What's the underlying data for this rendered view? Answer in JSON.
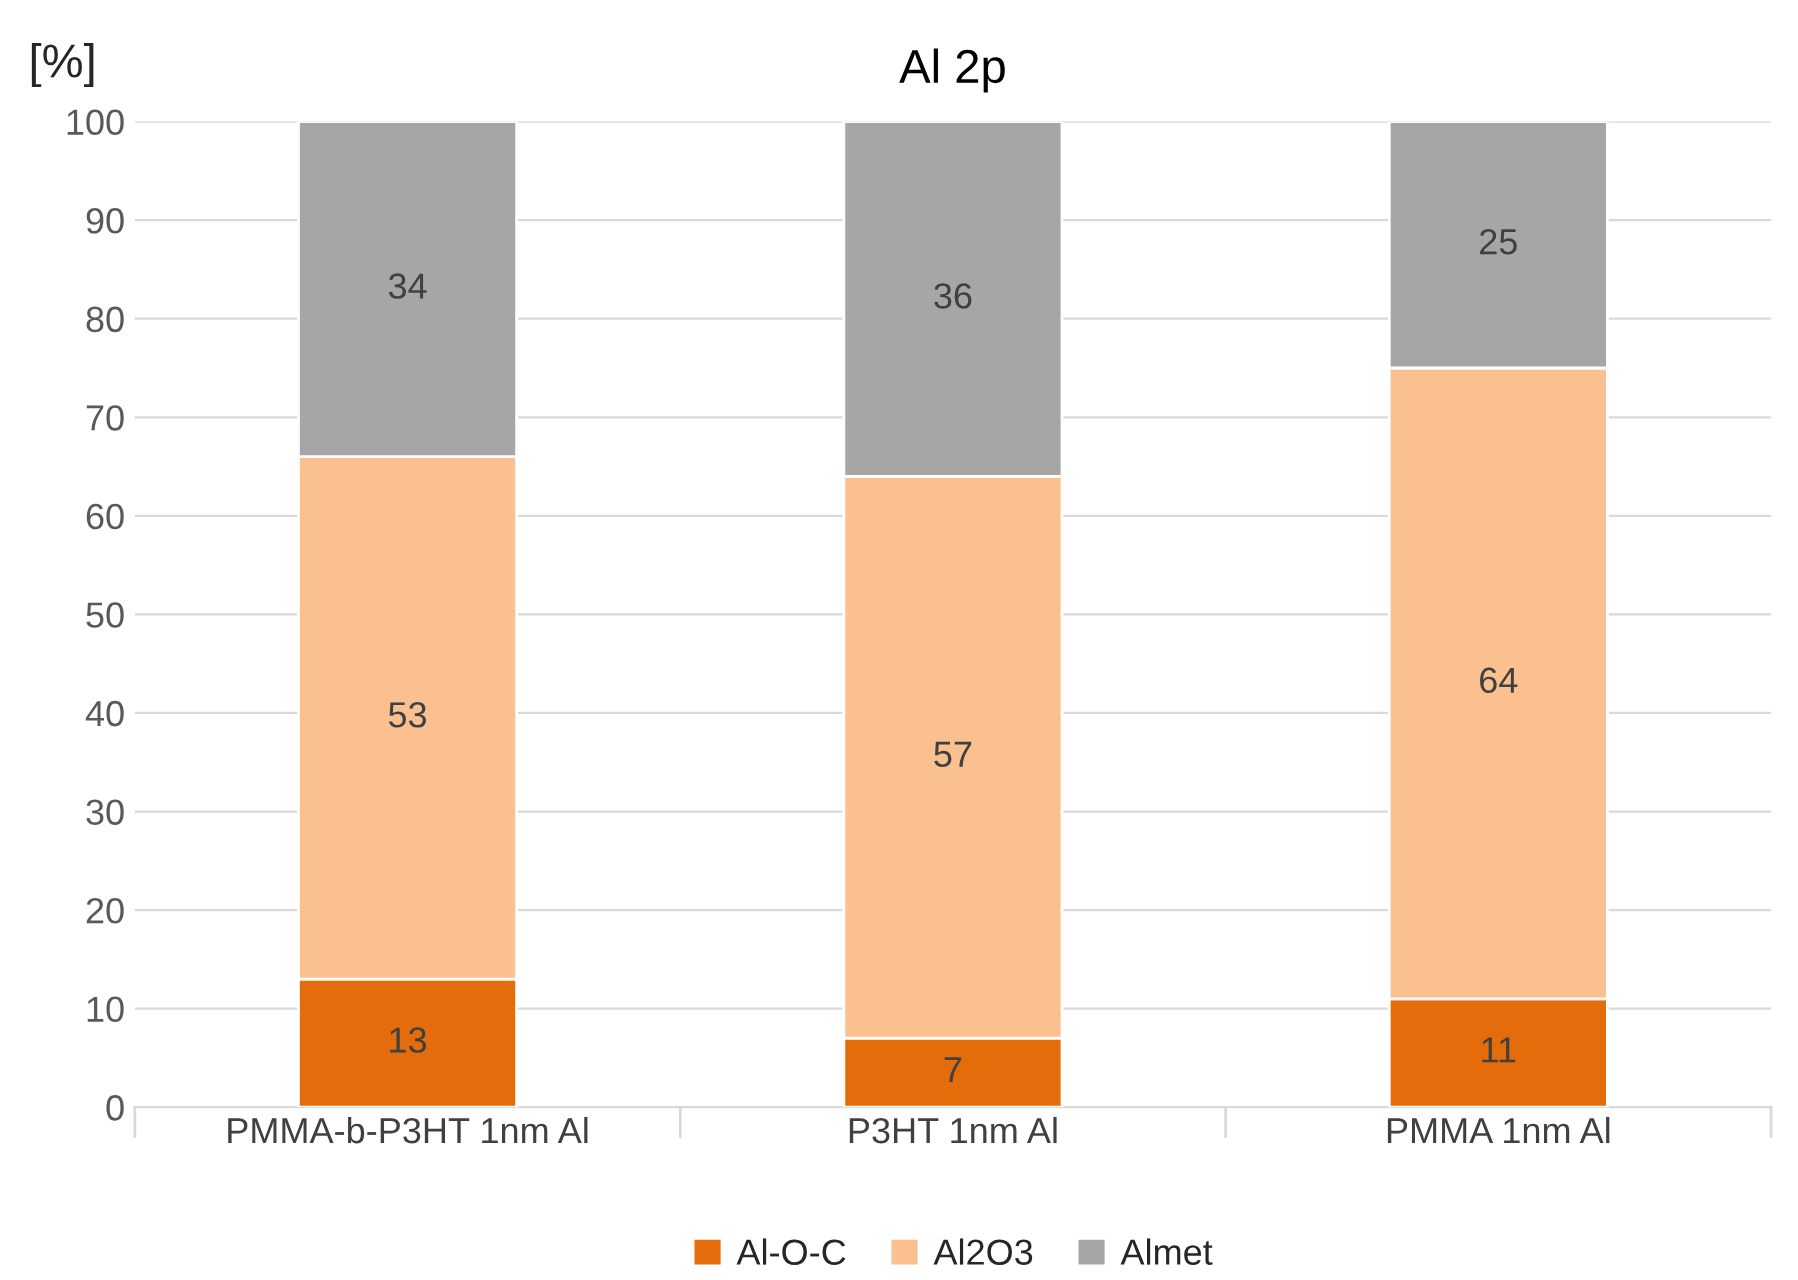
{
  "chart_data": {
    "type": "bar",
    "title": "Al 2p",
    "ylabel": "[%]",
    "categories": [
      "PMMA-b-P3HT 1nm Al",
      "P3HT 1nm Al",
      "PMMA 1nm Al"
    ],
    "series": [
      {
        "name": "Al-O-C",
        "color": "#e46c0a",
        "values": [
          13,
          7,
          11
        ]
      },
      {
        "name": "Al2O3",
        "color": "#fac090",
        "values": [
          53,
          57,
          64
        ]
      },
      {
        "name": "Almet",
        "color": "#a6a6a6",
        "values": [
          34,
          36,
          25
        ]
      }
    ],
    "stacked": true,
    "data_labels": true,
    "ylim": [
      0,
      100
    ],
    "yticks": [
      0,
      10,
      20,
      30,
      40,
      50,
      60,
      70,
      80,
      90,
      100
    ],
    "grid": "y",
    "legend": "bottom"
  }
}
